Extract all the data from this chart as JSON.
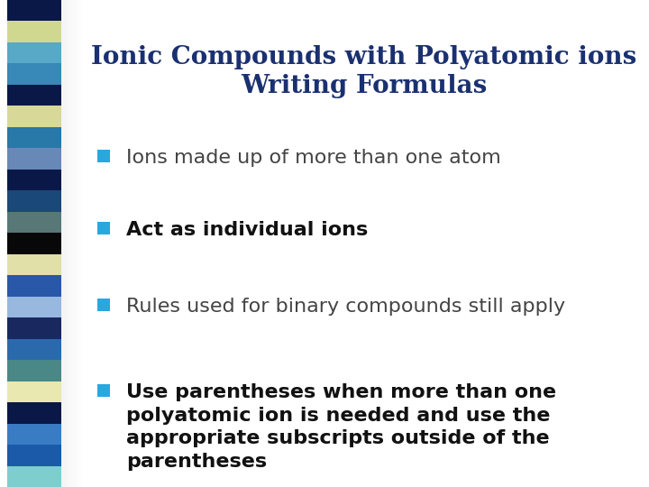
{
  "title_line1": "Ionic Compounds with Polyatomic ions",
  "title_line2": "Writing Formulas",
  "title_color": "#1a3070",
  "title_fontsize": 20,
  "bullet_color": "#29a8e0",
  "bullet_items": [
    {
      "text": "Ions made up of more than one atom",
      "bold": false,
      "fontsize": 16,
      "color": "#444444"
    },
    {
      "text": "Act as individual ions",
      "bold": true,
      "fontsize": 16,
      "color": "#111111"
    },
    {
      "text": "Rules used for binary compounds still apply",
      "bold": false,
      "fontsize": 16,
      "color": "#444444"
    },
    {
      "text": "Use parentheses when more than one\npolyatomic ion is needed and use the\nappropriate subscripts outside of the\nparentheses",
      "bold": true,
      "fontsize": 16,
      "color": "#111111"
    }
  ],
  "background_color": "#ffffff",
  "bar_colors": [
    "#7ecece",
    "#1a5aa8",
    "#3a7cc4",
    "#0a1848",
    "#e8e8b0",
    "#4a8888",
    "#2a6aac",
    "#1a2860",
    "#98b8e0",
    "#2a58a8",
    "#e0e0a8",
    "#080808",
    "#587878",
    "#1a4878",
    "#0a1848",
    "#6888b8",
    "#2878a8",
    "#d8d898",
    "#0a1848",
    "#3888b8",
    "#58a8c8",
    "#d0d890",
    "#0a1848"
  ],
  "shadow_color": "#aaaaaa"
}
